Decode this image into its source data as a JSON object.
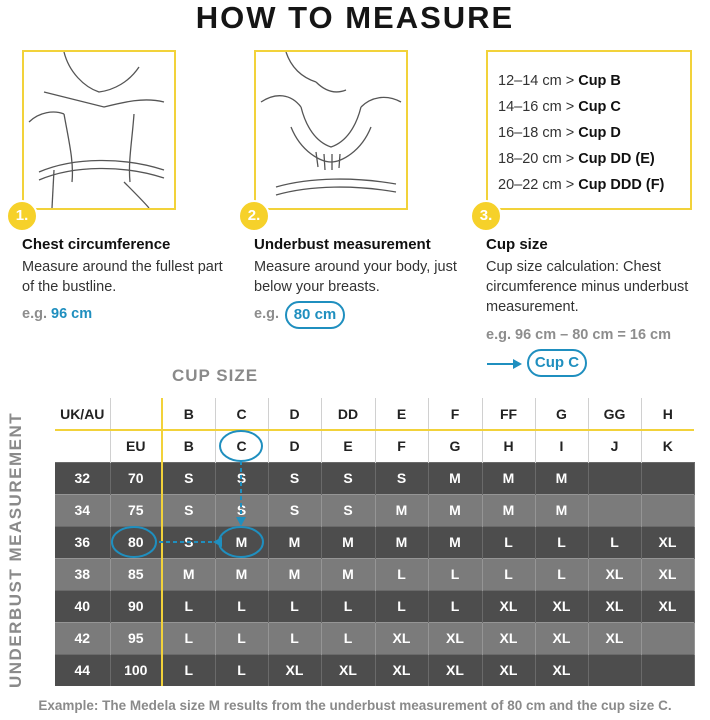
{
  "title": "HOW TO MEASURE",
  "steps": [
    {
      "num": "1.",
      "heading": "Chest circumference",
      "text": "Measure around the fullest part of the bustline.",
      "eg_prefix": "e.g.",
      "eg_value": "96 cm"
    },
    {
      "num": "2.",
      "heading": "Underbust measurement",
      "text": "Measure around your body, just below your breasts.",
      "eg_prefix": "e.g.",
      "eg_value": "80 cm"
    },
    {
      "num": "3.",
      "heading": "Cup size",
      "text": "Cup size calculation: Chest circumference minus underbust measurement.",
      "eg_text": "e.g. 96 cm – 80 cm = 16 cm",
      "eg_result": "Cup C"
    }
  ],
  "cup_ranges": [
    {
      "range": "12–14 cm >",
      "cup": "Cup B"
    },
    {
      "range": "14–16 cm >",
      "cup": "Cup C"
    },
    {
      "range": "16–18 cm >",
      "cup": "Cup D"
    },
    {
      "range": "18–20 cm >",
      "cup": "Cup DD (E)"
    },
    {
      "range": "20–22 cm >",
      "cup": "Cup DDD (F)"
    }
  ],
  "cup_size_label": "CUP SIZE",
  "underbust_label": "UNDERBUST MEASUREMENT",
  "table": {
    "uk_label": "UK/AU",
    "eu_label": "EU",
    "uk_cups": [
      "B",
      "C",
      "D",
      "DD",
      "E",
      "F",
      "FF",
      "G",
      "GG",
      "H"
    ],
    "eu_cups": [
      "B",
      "C",
      "D",
      "E",
      "F",
      "G",
      "H",
      "I",
      "J",
      "K"
    ],
    "rows": [
      {
        "uk": "32",
        "eu": "70",
        "sizes": [
          "S",
          "S",
          "S",
          "S",
          "S",
          "M",
          "M",
          "M",
          "",
          ""
        ]
      },
      {
        "uk": "34",
        "eu": "75",
        "sizes": [
          "S",
          "S",
          "S",
          "S",
          "M",
          "M",
          "M",
          "M",
          "",
          ""
        ]
      },
      {
        "uk": "36",
        "eu": "80",
        "sizes": [
          "S",
          "M",
          "M",
          "M",
          "M",
          "M",
          "L",
          "L",
          "L",
          "XL"
        ]
      },
      {
        "uk": "38",
        "eu": "85",
        "sizes": [
          "M",
          "M",
          "M",
          "M",
          "L",
          "L",
          "L",
          "L",
          "XL",
          "XL"
        ]
      },
      {
        "uk": "40",
        "eu": "90",
        "sizes": [
          "L",
          "L",
          "L",
          "L",
          "L",
          "L",
          "XL",
          "XL",
          "XL",
          "XL"
        ]
      },
      {
        "uk": "42",
        "eu": "95",
        "sizes": [
          "L",
          "L",
          "L",
          "L",
          "XL",
          "XL",
          "XL",
          "XL",
          "XL",
          ""
        ]
      },
      {
        "uk": "44",
        "eu": "100",
        "sizes": [
          "L",
          "L",
          "XL",
          "XL",
          "XL",
          "XL",
          "XL",
          "XL",
          "",
          ""
        ]
      }
    ]
  },
  "footer": "Example: The Medela size M results from the underbust measurement of 80 cm and the cup size C.",
  "colors": {
    "accent_yellow": "#f2d23a",
    "highlight_blue": "#1f8fbf",
    "dark_row": "#4d4d4d",
    "light_row": "#7b7b7b"
  }
}
